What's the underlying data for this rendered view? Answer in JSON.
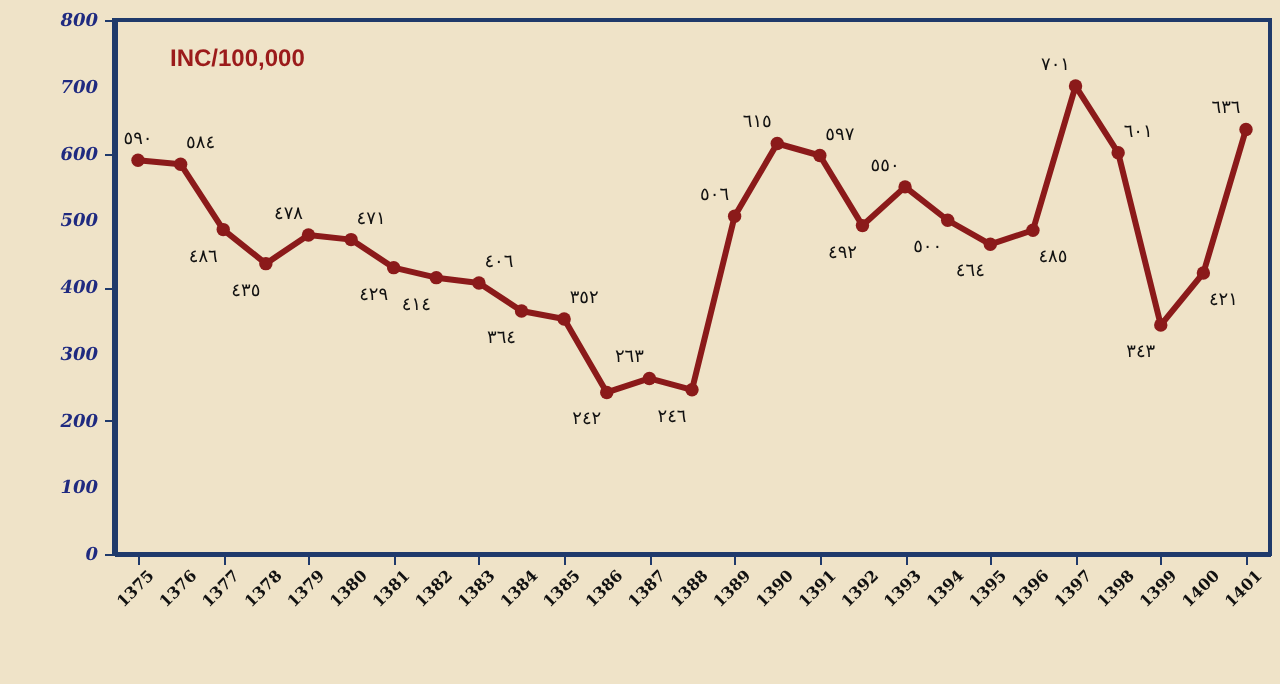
{
  "chart_data": {
    "type": "line",
    "title": "INC/100,000",
    "categories": [
      "1375",
      "1376",
      "1377",
      "1378",
      "1379",
      "1380",
      "1381",
      "1382",
      "1383",
      "1384",
      "1385",
      "1386",
      "1387",
      "1388",
      "1389",
      "1390",
      "1391",
      "1392",
      "1393",
      "1394",
      "1395",
      "1396",
      "1397",
      "1398",
      "1399",
      "1400",
      "1401"
    ],
    "series": [
      {
        "color": "#8b1a1a",
        "values": [
          590,
          584,
          486,
          435,
          478,
          471,
          429,
          414,
          406,
          364,
          352,
          242,
          263,
          246,
          506,
          615,
          597,
          492,
          550,
          500,
          464,
          485,
          701,
          601,
          343,
          421,
          636
        ],
        "value_labels": [
          "٥٩٠",
          "٥٨٤",
          "٤٨٦",
          "٤٣٥",
          "٤٧٨",
          "٤٧١",
          "٤٢٩",
          "٤١٤",
          "٤٠٦",
          "٣٦٤",
          "٣٥٢",
          "٢٤٢",
          "٢٦٣",
          "٢٤٦",
          "٥٠٦",
          "٦١٥",
          "٥٩٧",
          "٤٩٢",
          "٥٥٠",
          "٥٠٠",
          "٤٦٤",
          "٤٨٥",
          "٧٠١",
          "٦٠١",
          "٣٤٣",
          "٤٢١",
          "٦٣٦"
        ]
      }
    ],
    "ylim": [
      0,
      800
    ],
    "yticks": [
      0,
      100,
      200,
      300,
      400,
      500,
      600,
      700,
      800
    ],
    "marker": "circle",
    "line_style": "solid",
    "grid": false,
    "legend": false
  }
}
